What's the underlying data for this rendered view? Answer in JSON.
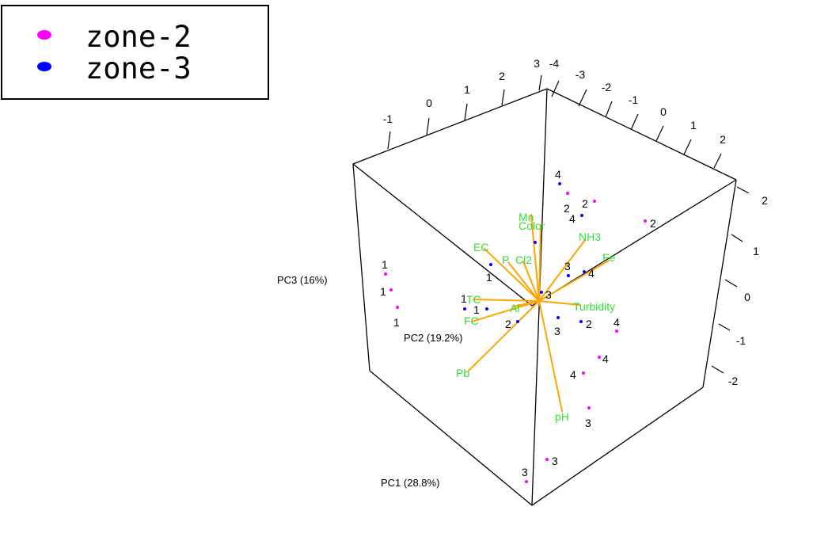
{
  "chart_data": {
    "type": "scatter",
    "subtype": "3d-pca-biplot",
    "axis_titles": {
      "pc1": "PC1 (28.8%)",
      "pc2": "PC2 (19.2%)",
      "pc3": "PC3 (16%)"
    },
    "tick_labels": {
      "top_front_edge": [
        "-1",
        "0",
        "1",
        "2",
        "3"
      ],
      "top_back_edge": [
        "-4",
        "-3",
        "-2",
        "-1",
        "0",
        "1",
        "2"
      ],
      "right_edge": [
        "2",
        "1",
        "0",
        "-1",
        "-2"
      ]
    },
    "legend": {
      "placement": "top-left",
      "entries": [
        {
          "label": "zone-2",
          "color": "#ff00ff"
        },
        {
          "label": "zone-3",
          "color": "#0000ff"
        }
      ]
    },
    "point_labels": [
      "4",
      "2",
      "2",
      "4",
      "2",
      "1",
      "1",
      "3",
      "4",
      "1",
      "3",
      "1",
      "1",
      "1",
      "2",
      "3",
      "2",
      "4",
      "4",
      "4",
      "3",
      "3",
      "3"
    ],
    "vectors": [
      "Mn",
      "Color",
      "NH3",
      "EC",
      "P",
      "Cl2",
      "Fe",
      "Turbidity",
      "TC",
      "Al",
      "FC",
      "Pb",
      "pH"
    ],
    "colors": {
      "vector": "#ffa500",
      "vector_label": "#33dd33",
      "box": "#000000"
    }
  }
}
